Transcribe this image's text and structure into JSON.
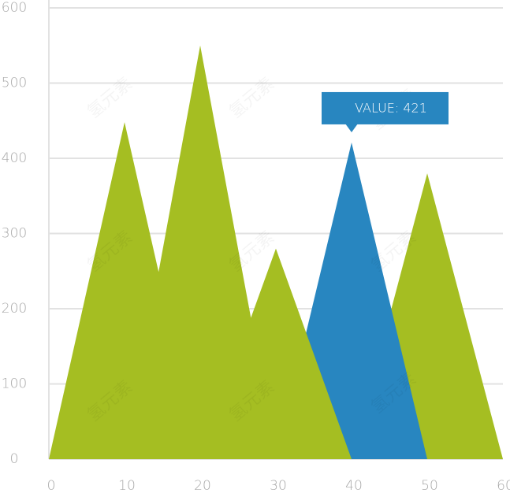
{
  "chart_data": {
    "type": "area",
    "series": [
      {
        "color": "#a5be22",
        "x": [
          40,
          50,
          60
        ],
        "values": [
          0,
          380,
          0
        ]
      },
      {
        "color": "#2886c0",
        "x": [
          30,
          40,
          50
        ],
        "values": [
          0,
          421,
          0
        ]
      },
      {
        "color": "#a5be22",
        "x": [
          0,
          10,
          14.5,
          20,
          26.7,
          30,
          40
        ],
        "values": [
          0,
          448,
          249,
          550,
          188,
          280,
          0
        ]
      }
    ],
    "xlim": [
      0,
      60
    ],
    "xticks": [
      0,
      10,
      20,
      30,
      40,
      50,
      60
    ],
    "ylim": [
      0,
      600
    ],
    "yticks": [
      0,
      100,
      200,
      300,
      400,
      500,
      600
    ],
    "grid": true,
    "annotation": "VALUE: 421",
    "watermark": "氢元素"
  }
}
